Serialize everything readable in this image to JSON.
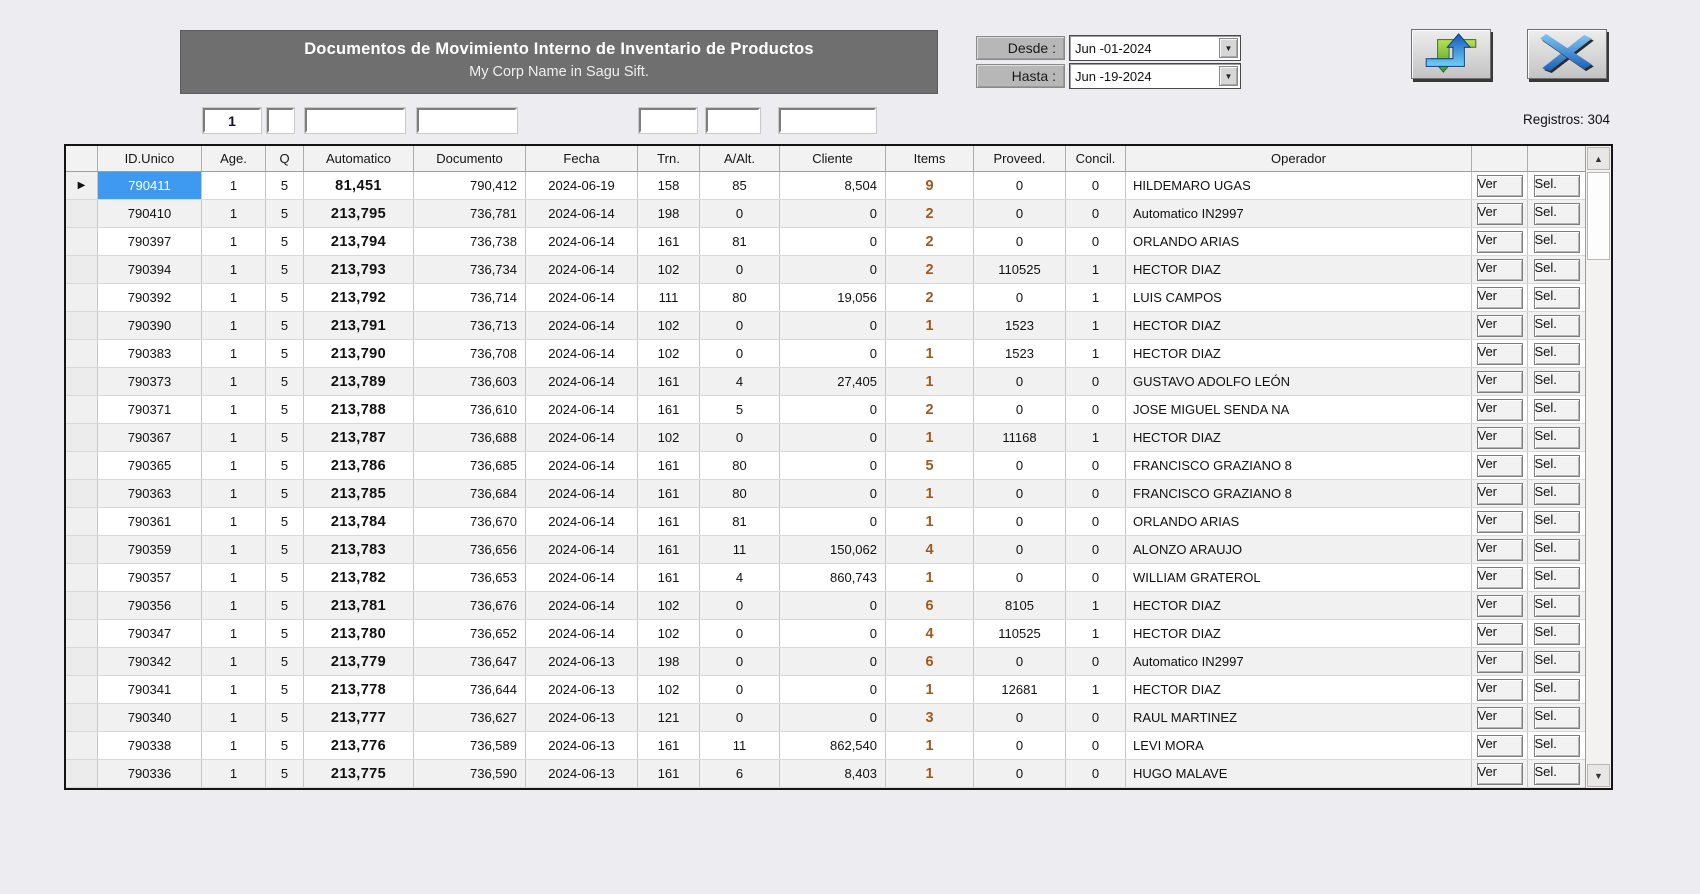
{
  "header": {
    "title": "Documentos de Movimiento Interno de Inventario de Productos",
    "subtitle": "My Corp Name in Sagu Sift.",
    "desde_label": "Desde :",
    "desde_value": "Jun -01-2024",
    "hasta_label": "Hasta :",
    "hasta_value": "Jun -19-2024",
    "registros": "Registros: 304"
  },
  "filters": {
    "age": "1",
    "q": "",
    "automatico": "",
    "documento": "",
    "trn": "",
    "a_alt": "",
    "cliente": ""
  },
  "icons": {
    "refresh": "refresh-sync-arrows",
    "exit": "close-x-blades",
    "combo_arrow": "▼",
    "scroll_up": "▲",
    "scroll_down": "▼",
    "row_pointer": "▶"
  },
  "colors": {
    "title_bg": "#6F6F6F",
    "selected_cell_bg": "#3E9AF0",
    "items_text": "#9A5B1F",
    "row_stripe": "#F1F1F1",
    "refresh_green": "#5BB033",
    "refresh_blue": "#1E6FD0"
  },
  "table": {
    "columns": [
      "ID.Unico",
      "Age.",
      "Q",
      "Automatico",
      "Documento",
      "Fecha",
      "Trn.",
      "A/Alt.",
      "Cliente",
      "Items",
      "Proveed.",
      "Concil.",
      "Operador"
    ],
    "action_labels": {
      "ver": "Ver",
      "sel": "Sel."
    },
    "selected_row_index": 0,
    "rows": [
      {
        "cells": [
          "790411",
          "1",
          "5",
          "81,451",
          "790,412",
          "2024-06-19",
          "158",
          "85",
          "8,504",
          "9",
          "0",
          "0",
          "HILDEMARO UGAS"
        ]
      },
      {
        "cells": [
          "790410",
          "1",
          "5",
          "213,795",
          "736,781",
          "2024-06-14",
          "198",
          "0",
          "0",
          "2",
          "0",
          "0",
          "Automatico IN2997"
        ]
      },
      {
        "cells": [
          "790397",
          "1",
          "5",
          "213,794",
          "736,738",
          "2024-06-14",
          "161",
          "81",
          "0",
          "2",
          "0",
          "0",
          "ORLANDO ARIAS"
        ]
      },
      {
        "cells": [
          "790394",
          "1",
          "5",
          "213,793",
          "736,734",
          "2024-06-14",
          "102",
          "0",
          "0",
          "2",
          "110525",
          "1",
          "HECTOR DIAZ"
        ]
      },
      {
        "cells": [
          "790392",
          "1",
          "5",
          "213,792",
          "736,714",
          "2024-06-14",
          "111",
          "80",
          "19,056",
          "2",
          "0",
          "1",
          "LUIS CAMPOS"
        ]
      },
      {
        "cells": [
          "790390",
          "1",
          "5",
          "213,791",
          "736,713",
          "2024-06-14",
          "102",
          "0",
          "0",
          "1",
          "1523",
          "1",
          "HECTOR DIAZ"
        ]
      },
      {
        "cells": [
          "790383",
          "1",
          "5",
          "213,790",
          "736,708",
          "2024-06-14",
          "102",
          "0",
          "0",
          "1",
          "1523",
          "1",
          "HECTOR DIAZ"
        ]
      },
      {
        "cells": [
          "790373",
          "1",
          "5",
          "213,789",
          "736,603",
          "2024-06-14",
          "161",
          "4",
          "27,405",
          "1",
          "0",
          "0",
          "GUSTAVO ADOLFO LEÓN"
        ]
      },
      {
        "cells": [
          "790371",
          "1",
          "5",
          "213,788",
          "736,610",
          "2024-06-14",
          "161",
          "5",
          "0",
          "2",
          "0",
          "0",
          "JOSE MIGUEL SENDA NA"
        ]
      },
      {
        "cells": [
          "790367",
          "1",
          "5",
          "213,787",
          "736,688",
          "2024-06-14",
          "102",
          "0",
          "0",
          "1",
          "11168",
          "1",
          "HECTOR DIAZ"
        ]
      },
      {
        "cells": [
          "790365",
          "1",
          "5",
          "213,786",
          "736,685",
          "2024-06-14",
          "161",
          "80",
          "0",
          "5",
          "0",
          "0",
          "FRANCISCO GRAZIANO 8"
        ]
      },
      {
        "cells": [
          "790363",
          "1",
          "5",
          "213,785",
          "736,684",
          "2024-06-14",
          "161",
          "80",
          "0",
          "1",
          "0",
          "0",
          "FRANCISCO GRAZIANO 8"
        ]
      },
      {
        "cells": [
          "790361",
          "1",
          "5",
          "213,784",
          "736,670",
          "2024-06-14",
          "161",
          "81",
          "0",
          "1",
          "0",
          "0",
          "ORLANDO ARIAS"
        ]
      },
      {
        "cells": [
          "790359",
          "1",
          "5",
          "213,783",
          "736,656",
          "2024-06-14",
          "161",
          "11",
          "150,062",
          "4",
          "0",
          "0",
          "ALONZO ARAUJO"
        ]
      },
      {
        "cells": [
          "790357",
          "1",
          "5",
          "213,782",
          "736,653",
          "2024-06-14",
          "161",
          "4",
          "860,743",
          "1",
          "0",
          "0",
          "WILLIAM GRATEROL"
        ]
      },
      {
        "cells": [
          "790356",
          "1",
          "5",
          "213,781",
          "736,676",
          "2024-06-14",
          "102",
          "0",
          "0",
          "6",
          "8105",
          "1",
          "HECTOR DIAZ"
        ]
      },
      {
        "cells": [
          "790347",
          "1",
          "5",
          "213,780",
          "736,652",
          "2024-06-14",
          "102",
          "0",
          "0",
          "4",
          "110525",
          "1",
          "HECTOR DIAZ"
        ]
      },
      {
        "cells": [
          "790342",
          "1",
          "5",
          "213,779",
          "736,647",
          "2024-06-13",
          "198",
          "0",
          "0",
          "6",
          "0",
          "0",
          "Automatico IN2997"
        ]
      },
      {
        "cells": [
          "790341",
          "1",
          "5",
          "213,778",
          "736,644",
          "2024-06-13",
          "102",
          "0",
          "0",
          "1",
          "12681",
          "1",
          "HECTOR DIAZ"
        ]
      },
      {
        "cells": [
          "790340",
          "1",
          "5",
          "213,777",
          "736,627",
          "2024-06-13",
          "121",
          "0",
          "0",
          "3",
          "0",
          "0",
          "RAUL MARTINEZ"
        ]
      },
      {
        "cells": [
          "790338",
          "1",
          "5",
          "213,776",
          "736,589",
          "2024-06-13",
          "161",
          "11",
          "862,540",
          "1",
          "0",
          "0",
          "LEVI MORA"
        ]
      },
      {
        "cells": [
          "790336",
          "1",
          "5",
          "213,775",
          "736,590",
          "2024-06-13",
          "161",
          "6",
          "8,403",
          "1",
          "0",
          "0",
          "HUGO MALAVE"
        ]
      }
    ]
  }
}
